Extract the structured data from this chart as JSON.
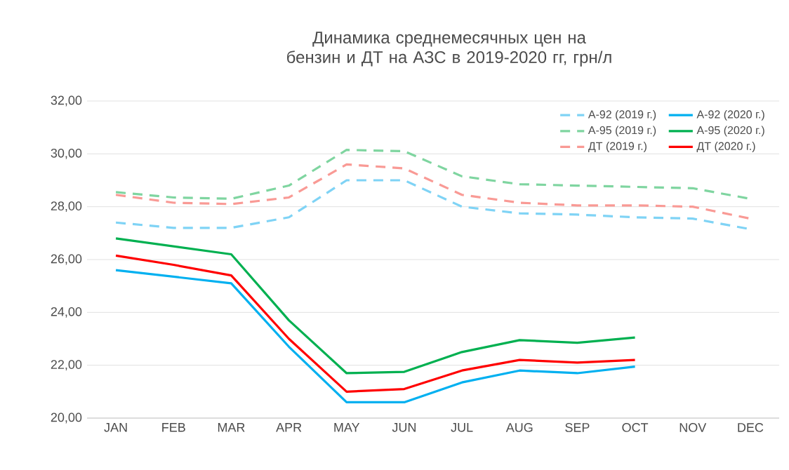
{
  "chart_data": {
    "type": "line",
    "title": "Динамика среднемесячных цен на бензин и ДТ на АЗС в 2019-2020 гг, грн/л",
    "categories": [
      "JAN",
      "FEB",
      "MAR",
      "APR",
      "MAY",
      "JUN",
      "JUL",
      "AUG",
      "SEP",
      "OCT",
      "NOV",
      "DEC"
    ],
    "series": [
      {
        "name": "А-92 (2019 г.)",
        "color": "#7fd3f5",
        "line_style": "dashed",
        "values": [
          27.4,
          27.2,
          27.2,
          27.6,
          29.0,
          29.0,
          28.0,
          27.75,
          27.7,
          27.6,
          27.55,
          27.15
        ]
      },
      {
        "name": "А-92 (2020 г.)",
        "color": "#00b0f0",
        "line_style": "solid",
        "values": [
          25.6,
          25.35,
          25.1,
          22.7,
          20.6,
          20.6,
          21.35,
          21.8,
          21.7,
          21.95,
          null,
          null
        ]
      },
      {
        "name": "А-95 (2019 г.)",
        "color": "#7fd5a0",
        "line_style": "dashed",
        "values": [
          28.55,
          28.35,
          28.3,
          28.8,
          30.15,
          30.1,
          29.15,
          28.85,
          28.8,
          28.75,
          28.7,
          28.3
        ]
      },
      {
        "name": "А-95 (2020 г.)",
        "color": "#00b050",
        "line_style": "solid",
        "values": [
          26.8,
          26.5,
          26.2,
          23.7,
          21.7,
          21.75,
          22.5,
          22.95,
          22.85,
          23.05,
          null,
          null
        ]
      },
      {
        "name": "ДТ (2019 г.)",
        "color": "#f99a95",
        "line_style": "dashed",
        "values": [
          28.45,
          28.15,
          28.1,
          28.35,
          29.6,
          29.45,
          28.45,
          28.15,
          28.05,
          28.05,
          28.0,
          27.55
        ]
      },
      {
        "name": "ДТ (2020 г.)",
        "color": "#ff0000",
        "line_style": "solid",
        "values": [
          26.15,
          25.8,
          25.4,
          23.0,
          21.0,
          21.1,
          21.8,
          22.2,
          22.1,
          22.2,
          null,
          null
        ]
      }
    ],
    "ylim": [
      20,
      32
    ],
    "yticks": [
      {
        "value": 20,
        "label": "20,00"
      },
      {
        "value": 22,
        "label": "22,00"
      },
      {
        "value": 24,
        "label": "24,00"
      },
      {
        "value": 26,
        "label": "26,00"
      },
      {
        "value": 28,
        "label": "28,00"
      },
      {
        "value": 30,
        "label": "30,00"
      },
      {
        "value": 32,
        "label": "32,00"
      }
    ],
    "grid": "y",
    "legend": "top right",
    "marker": "none"
  }
}
